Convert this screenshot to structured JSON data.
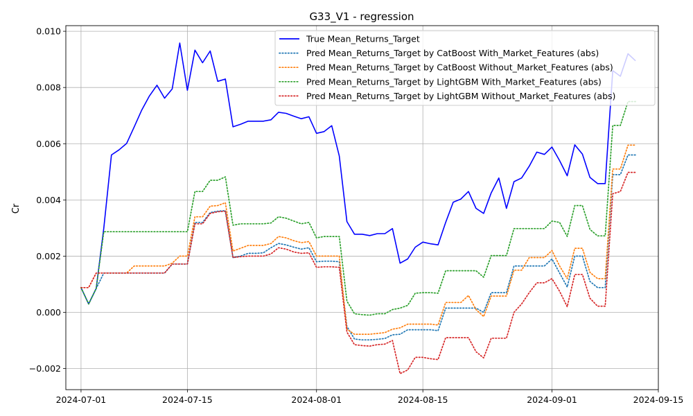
{
  "chart_data": {
    "type": "line",
    "title": "G33_V1 - regression",
    "xlabel": "",
    "ylabel": "Cr",
    "xlim": [
      "2024-06-29",
      "2024-09-15"
    ],
    "ylim": [
      -0.00275,
      0.0102
    ],
    "grid": true,
    "legend_position": "top-right",
    "x_ticks": [
      "2024-07-01",
      "2024-07-15",
      "2024-08-01",
      "2024-08-15",
      "2024-09-01",
      "2024-09-15"
    ],
    "y_ticks": [
      -0.002,
      0.0,
      0.002,
      0.004,
      0.006,
      0.008,
      0.01
    ],
    "y_tick_labels": [
      "−0.002",
      "0.000",
      "0.002",
      "0.004",
      "0.006",
      "0.008",
      "0.010"
    ],
    "x": [
      "2024-07-01",
      "2024-07-02",
      "2024-07-03",
      "2024-07-04",
      "2024-07-05",
      "2024-07-06",
      "2024-07-07",
      "2024-07-08",
      "2024-07-09",
      "2024-07-10",
      "2024-07-11",
      "2024-07-12",
      "2024-07-13",
      "2024-07-14",
      "2024-07-15",
      "2024-07-16",
      "2024-07-17",
      "2024-07-18",
      "2024-07-19",
      "2024-07-20",
      "2024-07-21",
      "2024-07-22",
      "2024-07-23",
      "2024-07-24",
      "2024-07-25",
      "2024-07-26",
      "2024-07-27",
      "2024-07-28",
      "2024-07-29",
      "2024-07-30",
      "2024-07-31",
      "2024-08-01",
      "2024-08-02",
      "2024-08-03",
      "2024-08-04",
      "2024-08-05",
      "2024-08-06",
      "2024-08-07",
      "2024-08-08",
      "2024-08-09",
      "2024-08-10",
      "2024-08-11",
      "2024-08-12",
      "2024-08-13",
      "2024-08-14",
      "2024-08-15",
      "2024-08-16",
      "2024-08-17",
      "2024-08-18",
      "2024-08-19",
      "2024-08-20",
      "2024-08-21",
      "2024-08-22",
      "2024-08-23",
      "2024-08-24",
      "2024-08-25",
      "2024-08-26",
      "2024-08-27",
      "2024-08-28",
      "2024-08-29",
      "2024-08-30",
      "2024-08-31",
      "2024-09-01",
      "2024-09-02",
      "2024-09-03",
      "2024-09-04",
      "2024-09-05",
      "2024-09-06",
      "2024-09-07",
      "2024-09-08",
      "2024-09-09",
      "2024-09-10",
      "2024-09-11",
      "2024-09-12"
    ],
    "series": [
      {
        "name": "True Mean_Returns_Target",
        "color": "#0000ff",
        "style": "solid",
        "values": [
          0.00088,
          0.0003,
          0.00085,
          0.003,
          0.0056,
          0.00578,
          0.00601,
          0.0066,
          0.0072,
          0.0077,
          0.00808,
          0.00762,
          0.00795,
          0.00958,
          0.0079,
          0.00933,
          0.00888,
          0.0093,
          0.00822,
          0.0083,
          0.0066,
          0.00669,
          0.0068,
          0.0068,
          0.0068,
          0.00685,
          0.00712,
          0.00708,
          0.00698,
          0.00689,
          0.00696,
          0.00637,
          0.00643,
          0.00664,
          0.00556,
          0.00323,
          0.00278,
          0.00278,
          0.00273,
          0.0028,
          0.0028,
          0.00298,
          0.00175,
          0.0019,
          0.00232,
          0.0025,
          0.00244,
          0.0024,
          0.0032,
          0.00392,
          0.00403,
          0.0043,
          0.0037,
          0.00352,
          0.00425,
          0.00478,
          0.0037,
          0.00465,
          0.00478,
          0.0052,
          0.0057,
          0.00562,
          0.00588,
          0.0054,
          0.00486,
          0.00596,
          0.00563,
          0.0048,
          0.00458,
          0.00458,
          0.0086,
          0.0084,
          0.0092,
          0.00895
        ]
      },
      {
        "name": "Pred Mean_Returns_Target by CatBoost With_Market_Features (abs)",
        "color": "#1f77b4",
        "style": "dotted",
        "values": [
          0.00088,
          0.0003,
          0.00085,
          0.0014,
          0.0014,
          0.0014,
          0.0014,
          0.0014,
          0.0014,
          0.0014,
          0.0014,
          0.0014,
          0.00172,
          0.00172,
          0.00172,
          0.0032,
          0.0032,
          0.00355,
          0.0036,
          0.00362,
          0.00195,
          0.002,
          0.0021,
          0.0021,
          0.00212,
          0.0023,
          0.00245,
          0.0024,
          0.00232,
          0.00225,
          0.0023,
          0.0018,
          0.00182,
          0.00182,
          0.0018,
          -0.0005,
          -0.00095,
          -0.00098,
          -0.00098,
          -0.00096,
          -0.00093,
          -0.0008,
          -0.00078,
          -0.00062,
          -0.00062,
          -0.00062,
          -0.00062,
          -0.00065,
          0.00015,
          0.00015,
          0.00015,
          0.00015,
          0.00015,
          0.0,
          0.0007,
          0.0007,
          0.0007,
          0.00165,
          0.00165,
          0.00165,
          0.00165,
          0.00165,
          0.0019,
          0.0014,
          0.0009,
          0.002,
          0.002,
          0.0011,
          0.00088,
          0.00088,
          0.0049,
          0.0049,
          0.0056,
          0.0056
        ]
      },
      {
        "name": "Pred Mean_Returns_Target by CatBoost Without_Market_Features (abs)",
        "color": "#ff7f0e",
        "style": "dotted",
        "values": [
          0.00088,
          0.00088,
          0.0014,
          0.0014,
          0.0014,
          0.0014,
          0.0014,
          0.00165,
          0.00165,
          0.00165,
          0.00165,
          0.00165,
          0.00175,
          0.002,
          0.002,
          0.0034,
          0.0034,
          0.00378,
          0.0038,
          0.0039,
          0.00218,
          0.00228,
          0.00238,
          0.00238,
          0.00238,
          0.00245,
          0.0027,
          0.00265,
          0.00255,
          0.00248,
          0.00252,
          0.002,
          0.002,
          0.002,
          0.002,
          -0.0006,
          -0.00078,
          -0.00078,
          -0.00078,
          -0.00075,
          -0.00072,
          -0.0006,
          -0.00055,
          -0.00042,
          -0.00042,
          -0.00042,
          -0.00042,
          -0.00045,
          0.00035,
          0.00035,
          0.00035,
          0.0006,
          0.0001,
          -0.00015,
          0.00058,
          0.00058,
          0.00058,
          0.0015,
          0.0015,
          0.00195,
          0.00195,
          0.00195,
          0.0022,
          0.00165,
          0.0012,
          0.00228,
          0.00228,
          0.00142,
          0.0012,
          0.0012,
          0.0051,
          0.0051,
          0.00595,
          0.00595
        ]
      },
      {
        "name": "Pred Mean_Returns_Target by LightGBM With_Market_Features (abs)",
        "color": "#2ca02c",
        "style": "dotted",
        "values": [
          0.00088,
          0.0003,
          0.00085,
          0.00287,
          0.00287,
          0.00287,
          0.00287,
          0.00287,
          0.00287,
          0.00287,
          0.00287,
          0.00287,
          0.00287,
          0.00287,
          0.00287,
          0.0043,
          0.0043,
          0.0047,
          0.0047,
          0.00482,
          0.0031,
          0.00315,
          0.00315,
          0.00315,
          0.00315,
          0.00318,
          0.0034,
          0.00335,
          0.00325,
          0.00315,
          0.0032,
          0.00265,
          0.0027,
          0.0027,
          0.0027,
          0.0004,
          -5e-05,
          -8e-05,
          -0.0001,
          -5e-05,
          -5e-05,
          0.0001,
          0.00015,
          0.00025,
          0.00068,
          0.0007,
          0.0007,
          0.00068,
          0.00148,
          0.00148,
          0.00148,
          0.00148,
          0.00148,
          0.00125,
          0.00202,
          0.00202,
          0.00202,
          0.00298,
          0.00298,
          0.00298,
          0.00298,
          0.00298,
          0.00325,
          0.0032,
          0.0027,
          0.0038,
          0.0038,
          0.00295,
          0.00272,
          0.00272,
          0.00665,
          0.00665,
          0.0075,
          0.0075
        ]
      },
      {
        "name": "Pred Mean_Returns_Target by LightGBM Without_Market_Features (abs)",
        "color": "#d62728",
        "style": "dotted",
        "values": [
          0.00088,
          0.00088,
          0.0014,
          0.0014,
          0.0014,
          0.0014,
          0.0014,
          0.0014,
          0.0014,
          0.0014,
          0.0014,
          0.0014,
          0.00172,
          0.00172,
          0.00172,
          0.00315,
          0.00315,
          0.00352,
          0.00358,
          0.0036,
          0.00195,
          0.00198,
          0.002,
          0.002,
          0.002,
          0.00208,
          0.0023,
          0.00225,
          0.00215,
          0.0021,
          0.00212,
          0.0016,
          0.00162,
          0.00162,
          0.0016,
          -0.0007,
          -0.00115,
          -0.00118,
          -0.0012,
          -0.00115,
          -0.00113,
          -0.001,
          -0.00218,
          -0.00205,
          -0.0016,
          -0.0016,
          -0.00165,
          -0.00168,
          -0.0009,
          -0.0009,
          -0.0009,
          -0.0009,
          -0.0014,
          -0.00162,
          -0.00092,
          -0.00092,
          -0.00092,
          0.0,
          0.0003,
          0.0007,
          0.00105,
          0.00105,
          0.0012,
          0.00075,
          0.0002,
          0.00135,
          0.00135,
          0.0005,
          0.00022,
          0.00022,
          0.00422,
          0.0043,
          0.00498,
          0.00498
        ]
      }
    ]
  }
}
